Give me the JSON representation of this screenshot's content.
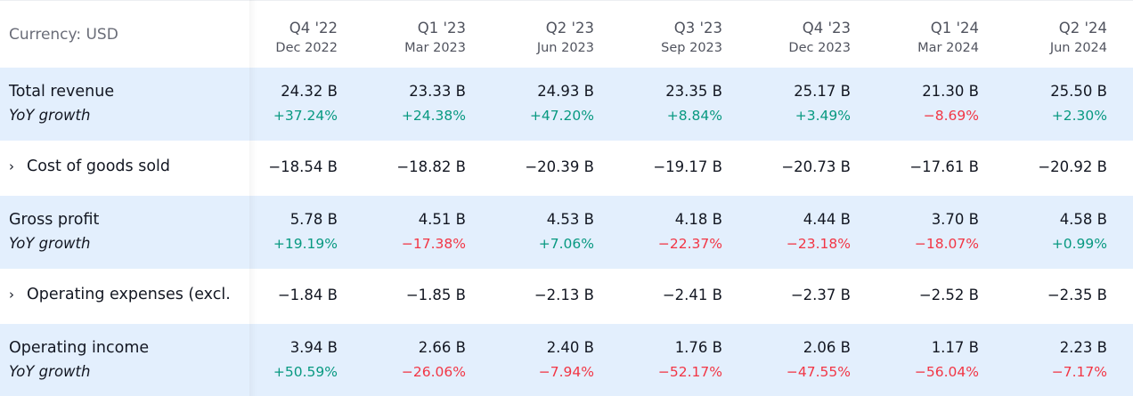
{
  "currency_label": "Currency: USD",
  "colors": {
    "positive": "#089981",
    "negative": "#f23645",
    "highlight": "#e3effd"
  },
  "periods": [
    {
      "quarter": "Q4 '22",
      "date": "Dec 2022"
    },
    {
      "quarter": "Q1 '23",
      "date": "Mar 2023"
    },
    {
      "quarter": "Q2 '23",
      "date": "Jun 2023"
    },
    {
      "quarter": "Q3 '23",
      "date": "Sep 2023"
    },
    {
      "quarter": "Q4 '23",
      "date": "Dec 2023"
    },
    {
      "quarter": "Q1 '24",
      "date": "Mar 2024"
    },
    {
      "quarter": "Q2 '24",
      "date": "Jun 2024"
    }
  ],
  "rows": [
    {
      "label": "Total revenue",
      "sub_label": "YoY growth",
      "expandable": false,
      "values": [
        "24.32 B",
        "23.33 B",
        "24.93 B",
        "23.35 B",
        "25.17 B",
        "21.30 B",
        "25.50 B"
      ],
      "growth": [
        "+37.24%",
        "+24.38%",
        "+47.20%",
        "+8.84%",
        "+3.49%",
        "−8.69%",
        "+2.30%"
      ]
    },
    {
      "label": "Cost of goods sold",
      "expandable": true,
      "values": [
        "−18.54 B",
        "−18.82 B",
        "−20.39 B",
        "−19.17 B",
        "−20.73 B",
        "−17.61 B",
        "−20.92 B"
      ]
    },
    {
      "label": "Gross profit",
      "sub_label": "YoY growth",
      "expandable": false,
      "values": [
        "5.78 B",
        "4.51 B",
        "4.53 B",
        "4.18 B",
        "4.44 B",
        "3.70 B",
        "4.58 B"
      ],
      "growth": [
        "+19.19%",
        "−17.38%",
        "+7.06%",
        "−22.37%",
        "−23.18%",
        "−18.07%",
        "+0.99%"
      ]
    },
    {
      "label": "Operating expenses (excl.",
      "expandable": true,
      "values": [
        "−1.84 B",
        "−1.85 B",
        "−2.13 B",
        "−2.41 B",
        "−2.37 B",
        "−2.52 B",
        "−2.35 B"
      ]
    },
    {
      "label": "Operating income",
      "sub_label": "YoY growth",
      "expandable": false,
      "values": [
        "3.94 B",
        "2.66 B",
        "2.40 B",
        "1.76 B",
        "2.06 B",
        "1.17 B",
        "2.23 B"
      ],
      "growth": [
        "+50.59%",
        "−26.06%",
        "−7.94%",
        "−52.17%",
        "−47.55%",
        "−56.04%",
        "−7.17%"
      ]
    }
  ]
}
